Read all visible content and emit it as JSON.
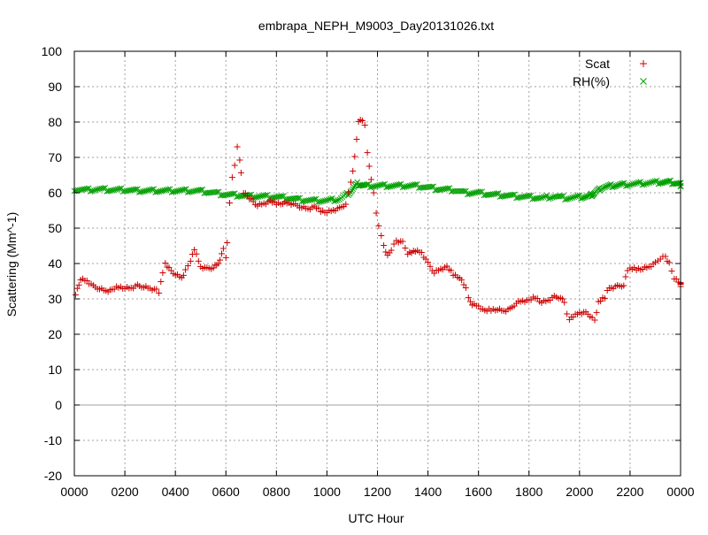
{
  "chart_data": {
    "type": "scatter",
    "title": "embrapa_NEPH_M9003_Day20131026.txt",
    "xlabel": "UTC Hour",
    "ylabel": "Scattering (Mm^-1)",
    "xlim": [
      0,
      24
    ],
    "ylim": [
      -20,
      100
    ],
    "x_ticks": [
      "0000",
      "0200",
      "0400",
      "0600",
      "0800",
      "1000",
      "1200",
      "1400",
      "1600",
      "1800",
      "2000",
      "2200",
      "0000"
    ],
    "y_ticks": [
      "-20",
      "-10",
      "0",
      "10",
      "20",
      "30",
      "40",
      "50",
      "60",
      "70",
      "80",
      "90",
      "100"
    ],
    "grid": true,
    "legend_position": "top-right",
    "series": [
      {
        "name": "Scat",
        "color": "#cc0000",
        "marker": "plus",
        "points": [
          [
            0.05,
            31.5
          ],
          [
            0.25,
            35.5
          ],
          [
            0.5,
            35
          ],
          [
            0.75,
            33.5
          ],
          [
            1.0,
            33
          ],
          [
            1.25,
            32.3
          ],
          [
            1.5,
            32.5
          ],
          [
            1.75,
            33.5
          ],
          [
            2.0,
            33
          ],
          [
            2.25,
            33
          ],
          [
            2.5,
            33.7
          ],
          [
            2.75,
            33.5
          ],
          [
            3.0,
            33
          ],
          [
            3.25,
            32.5
          ],
          [
            3.35,
            32
          ],
          [
            3.5,
            37.5
          ],
          [
            3.6,
            40
          ],
          [
            3.75,
            38.5
          ],
          [
            4.0,
            37
          ],
          [
            4.25,
            36
          ],
          [
            4.4,
            38
          ],
          [
            4.6,
            41
          ],
          [
            4.75,
            44
          ],
          [
            5.0,
            39
          ],
          [
            5.25,
            38.5
          ],
          [
            5.5,
            39
          ],
          [
            5.7,
            40
          ],
          [
            5.9,
            44
          ],
          [
            6.0,
            42
          ],
          [
            6.05,
            46
          ],
          [
            6.15,
            57
          ],
          [
            6.25,
            64
          ],
          [
            6.35,
            68
          ],
          [
            6.45,
            73
          ],
          [
            6.55,
            69
          ],
          [
            6.6,
            66
          ],
          [
            6.7,
            60
          ],
          [
            6.85,
            59
          ],
          [
            7.0,
            58
          ],
          [
            7.25,
            56.5
          ],
          [
            7.5,
            57
          ],
          [
            7.75,
            57.5
          ],
          [
            8.0,
            57
          ],
          [
            8.25,
            57
          ],
          [
            8.5,
            57
          ],
          [
            8.75,
            56.5
          ],
          [
            9.0,
            56
          ],
          [
            9.25,
            55.5
          ],
          [
            9.5,
            56
          ],
          [
            9.75,
            55
          ],
          [
            10.0,
            54.5
          ],
          [
            10.25,
            55
          ],
          [
            10.5,
            55.5
          ],
          [
            10.75,
            57
          ],
          [
            10.95,
            63
          ],
          [
            11.1,
            70
          ],
          [
            11.25,
            80.5
          ],
          [
            11.4,
            80.5
          ],
          [
            11.5,
            79
          ],
          [
            11.6,
            71
          ],
          [
            11.75,
            64
          ],
          [
            11.85,
            60
          ],
          [
            11.95,
            54
          ],
          [
            12.05,
            51
          ],
          [
            12.15,
            48
          ],
          [
            12.25,
            45
          ],
          [
            12.4,
            42
          ],
          [
            12.55,
            44
          ],
          [
            12.75,
            46.5
          ],
          [
            13.0,
            46
          ],
          [
            13.2,
            43
          ],
          [
            13.5,
            43.5
          ],
          [
            13.75,
            43
          ],
          [
            14.0,
            40
          ],
          [
            14.25,
            37.5
          ],
          [
            14.5,
            38.5
          ],
          [
            14.75,
            39
          ],
          [
            15.0,
            37
          ],
          [
            15.25,
            36
          ],
          [
            15.5,
            33
          ],
          [
            15.6,
            30
          ],
          [
            15.75,
            28.5
          ],
          [
            16.0,
            28
          ],
          [
            16.25,
            26.5
          ],
          [
            16.5,
            27
          ],
          [
            16.75,
            27
          ],
          [
            17.0,
            26.5
          ],
          [
            17.25,
            27
          ],
          [
            17.5,
            29
          ],
          [
            17.75,
            29.5
          ],
          [
            18.0,
            29.5
          ],
          [
            18.25,
            30.5
          ],
          [
            18.5,
            29
          ],
          [
            18.75,
            29.5
          ],
          [
            19.0,
            30.5
          ],
          [
            19.25,
            30.5
          ],
          [
            19.4,
            29
          ],
          [
            19.5,
            25.5
          ],
          [
            19.6,
            24.5
          ],
          [
            19.75,
            25
          ],
          [
            20.0,
            26
          ],
          [
            20.25,
            26
          ],
          [
            20.5,
            25
          ],
          [
            20.6,
            24
          ],
          [
            20.75,
            29
          ],
          [
            21.0,
            30.5
          ],
          [
            21.1,
            32.5
          ],
          [
            21.25,
            33
          ],
          [
            21.5,
            33.5
          ],
          [
            21.75,
            34
          ],
          [
            21.9,
            38
          ],
          [
            22.0,
            38.5
          ],
          [
            22.25,
            38.5
          ],
          [
            22.5,
            38.5
          ],
          [
            22.75,
            39
          ],
          [
            23.0,
            40
          ],
          [
            23.2,
            41.5
          ],
          [
            23.4,
            42
          ],
          [
            23.55,
            40
          ],
          [
            23.75,
            36
          ],
          [
            24.0,
            34.5
          ],
          [
            24.15,
            34
          ],
          [
            24.3,
            33.5
          ]
        ]
      },
      {
        "name": "RH(%)",
        "color": "#00a000",
        "marker": "cross",
        "points": [
          [
            0,
            61
          ],
          [
            0.5,
            60.8
          ],
          [
            1,
            61
          ],
          [
            1.5,
            60.8
          ],
          [
            2,
            60.8
          ],
          [
            2.5,
            60.6
          ],
          [
            3,
            60.6
          ],
          [
            3.5,
            60.6
          ],
          [
            4,
            60.6
          ],
          [
            4.5,
            60.6
          ],
          [
            5,
            60.5
          ],
          [
            5.5,
            60
          ],
          [
            6,
            59.5
          ],
          [
            6.5,
            59.3
          ],
          [
            7,
            59
          ],
          [
            7.5,
            59
          ],
          [
            8,
            58.8
          ],
          [
            8.5,
            58.5
          ],
          [
            9,
            58
          ],
          [
            9.5,
            57.8
          ],
          [
            10,
            57.8
          ],
          [
            10.5,
            58.2
          ],
          [
            10.9,
            60
          ],
          [
            11.2,
            62.5
          ],
          [
            11.5,
            62
          ],
          [
            12,
            62
          ],
          [
            12.5,
            62
          ],
          [
            13,
            62
          ],
          [
            13.5,
            62
          ],
          [
            14,
            61.5
          ],
          [
            14.5,
            61
          ],
          [
            15,
            60.8
          ],
          [
            15.5,
            60
          ],
          [
            16,
            60
          ],
          [
            16.5,
            59.5
          ],
          [
            17,
            59.3
          ],
          [
            17.5,
            59
          ],
          [
            18,
            58.8
          ],
          [
            18.5,
            58.5
          ],
          [
            19,
            59
          ],
          [
            19.5,
            58.5
          ],
          [
            20,
            58.8
          ],
          [
            20.4,
            59
          ],
          [
            20.6,
            60
          ],
          [
            20.9,
            61.5
          ],
          [
            21.3,
            62
          ],
          [
            21.7,
            62.3
          ],
          [
            22.2,
            62.5
          ],
          [
            22.7,
            62.8
          ],
          [
            23.2,
            63
          ],
          [
            23.6,
            63
          ],
          [
            24.0,
            62.5
          ],
          [
            24.3,
            62
          ]
        ]
      }
    ]
  }
}
